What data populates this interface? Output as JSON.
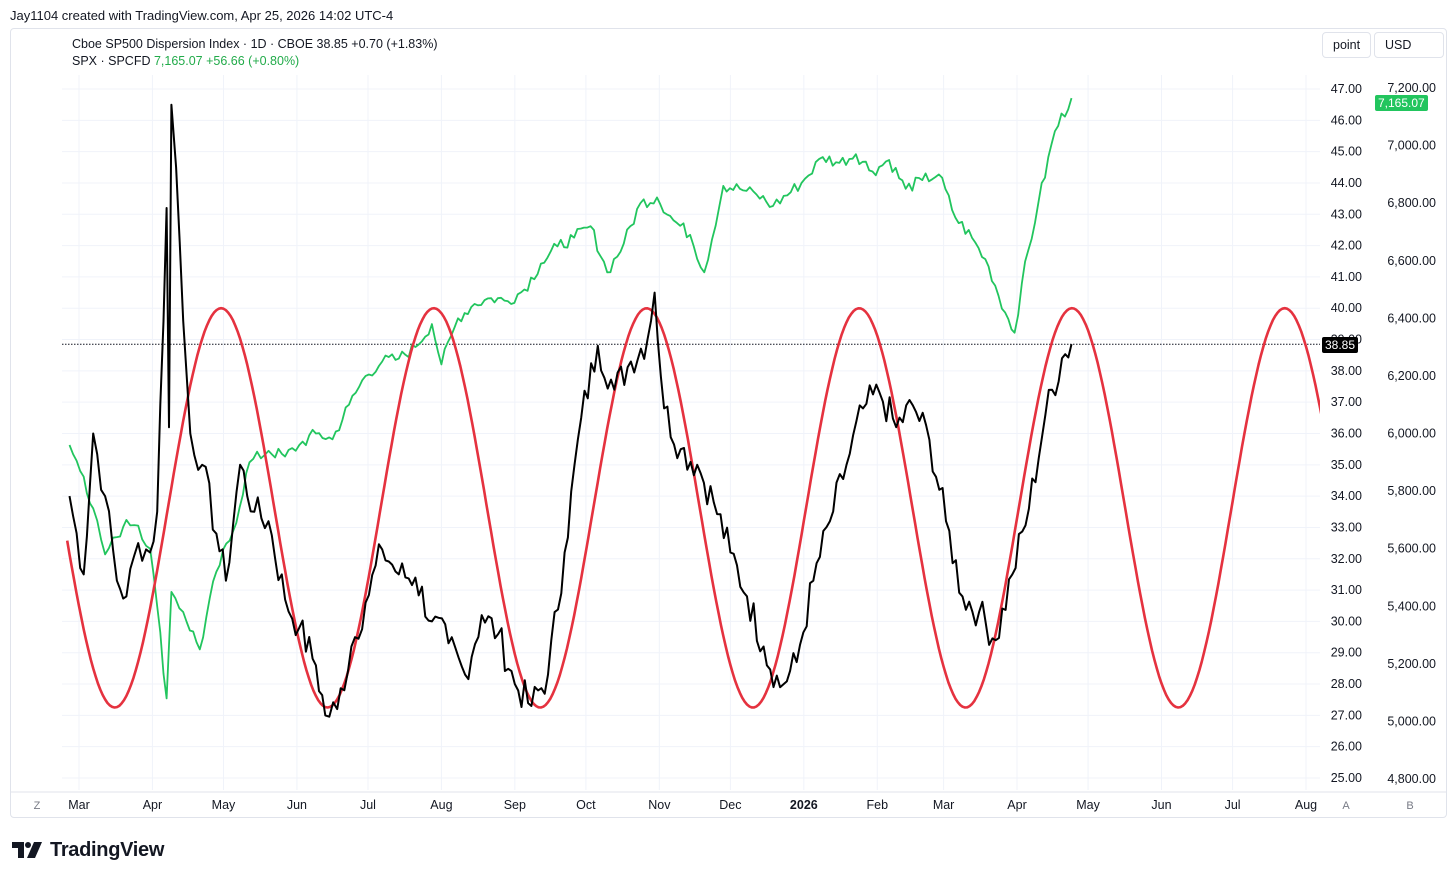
{
  "header": {
    "credit": "Jay1104 created with TradingView.com, Apr 25, 2026 14:02 UTC-4"
  },
  "legend": {
    "series1": {
      "text": "Cboe SP500 Dispersion Index · 1D · CBOE  38.85  +0.70 (+1.83%)"
    },
    "series2": {
      "prefix": "SPX · SPCFD ",
      "value": "7,165.07  +56.66 (+0.80%)"
    }
  },
  "buttons": {
    "point": "point",
    "usd": "USD"
  },
  "price_tags": {
    "spx": "7,165.07",
    "dispersion": "38.85"
  },
  "bottom_controls": {
    "left": "Z",
    "auto": "A",
    "log": "B"
  },
  "footer": {
    "brand": "TradingView"
  },
  "colors": {
    "dispersion": "#000000",
    "spx": "#22c55e",
    "cycle": "#e5323f",
    "grid": "#f0f3fa",
    "text": "#131722"
  },
  "chart_data": {
    "type": "line",
    "x_ticks": [
      "Mar",
      "Apr",
      "May",
      "Jun",
      "Jul",
      "Aug",
      "Sep",
      "Oct",
      "Nov",
      "Dec",
      "2026",
      "Feb",
      "Mar",
      "Apr",
      "May",
      "Jun",
      "Jul",
      "Aug"
    ],
    "y_left_ticks": [
      "47.00",
      "46.00",
      "45.00",
      "44.00",
      "43.00",
      "42.00",
      "41.00",
      "40.00",
      "39.00",
      "38.00",
      "37.00",
      "36.00",
      "35.00",
      "34.00",
      "33.00",
      "32.00",
      "31.00",
      "30.00",
      "29.00",
      "28.00",
      "27.00",
      "26.00",
      "25.00"
    ],
    "y_right_ticks": [
      "7,200.00",
      "7,000.00",
      "6,800.00",
      "6,600.00",
      "6,400.00",
      "6,200.00",
      "6,000.00",
      "5,800.00",
      "5,600.00",
      "5,400.00",
      "5,200.00",
      "5,000.00",
      "4,800.00"
    ],
    "ylim_left": [
      24.7,
      47.3
    ],
    "ylim_right": [
      4740,
      7230
    ],
    "last_value_line": 38.85,
    "series": [
      {
        "name": "Cboe SP500 Dispersion Index",
        "axis": "left",
        "x": [
          "2025-02-25",
          "2025-03-03",
          "2025-03-07",
          "2025-03-12",
          "2025-03-17",
          "2025-03-21",
          "2025-03-26",
          "2025-03-31",
          "2025-04-03",
          "2025-04-07",
          "2025-04-08",
          "2025-04-09",
          "2025-04-11",
          "2025-04-14",
          "2025-04-17",
          "2025-04-22",
          "2025-04-28",
          "2025-05-02",
          "2025-05-08",
          "2025-05-14",
          "2025-05-20",
          "2025-05-27",
          "2025-06-02",
          "2025-06-09",
          "2025-06-13",
          "2025-06-18",
          "2025-06-24",
          "2025-06-30",
          "2025-07-07",
          "2025-07-14",
          "2025-07-21",
          "2025-07-28",
          "2025-08-04",
          "2025-08-11",
          "2025-08-18",
          "2025-08-25",
          "2025-09-01",
          "2025-09-08",
          "2025-09-15",
          "2025-09-22",
          "2025-09-29",
          "2025-10-06",
          "2025-10-13",
          "2025-10-20",
          "2025-10-27",
          "2025-10-30",
          "2025-11-03",
          "2025-11-10",
          "2025-11-17",
          "2025-11-24",
          "2025-12-01",
          "2025-12-08",
          "2025-12-15",
          "2025-12-22",
          "2025-12-29",
          "2026-01-05",
          "2026-01-12",
          "2026-01-19",
          "2026-01-26",
          "2026-02-02",
          "2026-02-09",
          "2026-02-16",
          "2026-02-23",
          "2026-03-02",
          "2026-03-09",
          "2026-03-16",
          "2026-03-23",
          "2026-03-30",
          "2026-04-06",
          "2026-04-13",
          "2026-04-20",
          "2026-04-24"
        ],
        "values": [
          34.0,
          31.5,
          36.0,
          34.0,
          31.3,
          30.8,
          32.5,
          32.2,
          33.5,
          43.2,
          36.2,
          46.5,
          44.5,
          39.6,
          36.0,
          35.0,
          32.8,
          31.3,
          35.0,
          33.5,
          33.2,
          30.7,
          29.8,
          28.6,
          27.0,
          27.2,
          29.2,
          30.6,
          32.3,
          31.5,
          31.4,
          30.0,
          29.3,
          28.3,
          30.2,
          29.6,
          28.0,
          27.3,
          28.3,
          32.2,
          36.5,
          38.8,
          37.4,
          38.3,
          39.0,
          40.5,
          36.8,
          35.5,
          35.0,
          33.8,
          32.2,
          30.8,
          29.2,
          27.9,
          28.7,
          31.3,
          33.2,
          35.0,
          36.8,
          37.3,
          36.2,
          36.9,
          35.8,
          33.2,
          30.8,
          30.3,
          29.4,
          31.5,
          33.6,
          36.6,
          38.4,
          38.85
        ]
      },
      {
        "name": "SPX · SPCFD",
        "axis": "right",
        "x": [
          "2025-02-25",
          "2025-03-03",
          "2025-03-07",
          "2025-03-12",
          "2025-03-17",
          "2025-03-21",
          "2025-03-26",
          "2025-03-31",
          "2025-04-03",
          "2025-04-07",
          "2025-04-09",
          "2025-04-14",
          "2025-04-21",
          "2025-04-28",
          "2025-05-05",
          "2025-05-12",
          "2025-05-20",
          "2025-05-27",
          "2025-06-02",
          "2025-06-09",
          "2025-06-16",
          "2025-06-23",
          "2025-06-30",
          "2025-07-07",
          "2025-07-14",
          "2025-07-21",
          "2025-07-28",
          "2025-08-01",
          "2025-08-08",
          "2025-08-15",
          "2025-08-22",
          "2025-08-29",
          "2025-09-05",
          "2025-09-12",
          "2025-09-19",
          "2025-09-26",
          "2025-10-03",
          "2025-10-10",
          "2025-10-17",
          "2025-10-24",
          "2025-10-31",
          "2025-11-07",
          "2025-11-14",
          "2025-11-20",
          "2025-11-28",
          "2025-12-05",
          "2025-12-12",
          "2025-12-19",
          "2025-12-31",
          "2026-01-09",
          "2026-01-16",
          "2026-01-23",
          "2026-01-30",
          "2026-02-06",
          "2026-02-13",
          "2026-02-20",
          "2026-02-27",
          "2026-03-06",
          "2026-03-13",
          "2026-03-20",
          "2026-03-27",
          "2026-03-31",
          "2026-04-03",
          "2026-04-10",
          "2026-04-17",
          "2026-04-24"
        ],
        "values": [
          5960,
          5850,
          5740,
          5580,
          5640,
          5700,
          5680,
          5600,
          5400,
          5080,
          5450,
          5380,
          5250,
          5520,
          5660,
          5900,
          5940,
          5920,
          5960,
          6000,
          5980,
          6100,
          6200,
          6250,
          6260,
          6300,
          6380,
          6240,
          6400,
          6450,
          6470,
          6460,
          6500,
          6590,
          6650,
          6680,
          6720,
          6560,
          6660,
          6800,
          6820,
          6740,
          6690,
          6560,
          6860,
          6850,
          6830,
          6790,
          6870,
          6960,
          6940,
          6970,
          6910,
          6950,
          6850,
          6880,
          6900,
          6750,
          6680,
          6580,
          6420,
          6350,
          6520,
          6800,
          7050,
          7165.07
        ]
      },
      {
        "name": "",
        "axis": "left",
        "style": "sine",
        "min": 27.25,
        "max": 40.0,
        "peaks": [
          "2025-04-30",
          "2025-07-31",
          "2025-10-21",
          "2026-01-20",
          "2026-04-23",
          "2026-07-23"
        ]
      }
    ]
  }
}
